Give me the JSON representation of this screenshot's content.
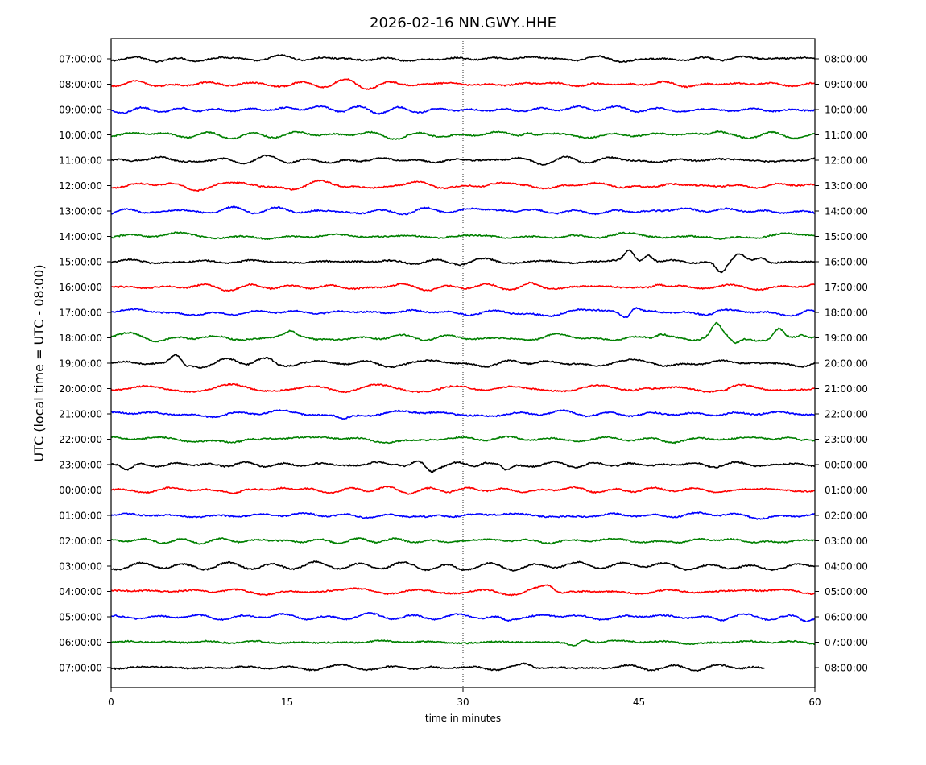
{
  "chart_data": {
    "type": "line",
    "title": "2026-02-16 NN.GWY..HHE",
    "xlabel": "time in minutes",
    "ylabel": "UTC (local time = UTC - 08:00)",
    "xlim": [
      0,
      60
    ],
    "x_ticks": [
      "0",
      "15",
      "30",
      "45",
      "60"
    ],
    "grid": "vertical dotted lines at 15, 30, 45",
    "trace_colors": [
      "#000000",
      "#ff0000",
      "#0000ff",
      "#008000"
    ],
    "final_row_end_minute": 55.7,
    "rows": [
      {
        "left": "07:00:00",
        "right": "08:00:00",
        "events": []
      },
      {
        "left": "08:00:00",
        "right": "09:00:00",
        "events": []
      },
      {
        "left": "09:00:00",
        "right": "10:00:00",
        "events": []
      },
      {
        "left": "10:00:00",
        "right": "11:00:00",
        "events": [
          [
            35.5,
            1.2
          ],
          [
            51.7,
            0.8
          ]
        ]
      },
      {
        "left": "11:00:00",
        "right": "12:00:00",
        "events": [
          [
            2.3,
            0.7
          ],
          [
            19.1,
            -0.6
          ]
        ]
      },
      {
        "left": "12:00:00",
        "right": "13:00:00",
        "events": [
          [
            30.7,
            0.7
          ]
        ]
      },
      {
        "left": "13:00:00",
        "right": "14:00:00",
        "events": [
          [
            3.4,
            0.6
          ]
        ]
      },
      {
        "left": "14:00:00",
        "right": "15:00:00",
        "events": [
          [
            51.0,
            0.6
          ]
        ]
      },
      {
        "left": "15:00:00",
        "right": "16:00:00",
        "events": [
          [
            44.2,
            4.0
          ],
          [
            45.8,
            3.2
          ],
          [
            52.0,
            -4.0
          ],
          [
            53.5,
            2.5
          ],
          [
            55.5,
            1.5
          ]
        ]
      },
      {
        "left": "16:00:00",
        "right": "17:00:00",
        "events": [
          [
            35.7,
            0.9
          ],
          [
            46.7,
            1.2
          ]
        ]
      },
      {
        "left": "17:00:00",
        "right": "18:00:00",
        "events": [
          [
            43.9,
            -1.8
          ],
          [
            44.7,
            2.0
          ],
          [
            51.8,
            0.8
          ],
          [
            59.5,
            1.0
          ]
        ]
      },
      {
        "left": "18:00:00",
        "right": "19:00:00",
        "events": [
          [
            15.3,
            1.3
          ],
          [
            46.9,
            1.4
          ],
          [
            51.6,
            4.5
          ],
          [
            53.2,
            -2.5
          ],
          [
            56.9,
            3.5
          ],
          [
            58.9,
            1.5
          ]
        ]
      },
      {
        "left": "19:00:00",
        "right": "20:00:00",
        "events": [
          [
            5.5,
            2.8
          ],
          [
            6.4,
            -1.0
          ],
          [
            12.5,
            1.2
          ],
          [
            13.4,
            1.6
          ]
        ]
      },
      {
        "left": "20:00:00",
        "right": "21:00:00",
        "events": [
          [
            45.5,
            0.7
          ],
          [
            52.3,
            -0.9
          ]
        ]
      },
      {
        "left": "21:00:00",
        "right": "22:00:00",
        "events": [
          [
            19.8,
            -1.1
          ]
        ]
      },
      {
        "left": "22:00:00",
        "right": "23:00:00",
        "events": [
          [
            12.5,
            -0.7
          ],
          [
            58.7,
            -1.2
          ]
        ]
      },
      {
        "left": "23:00:00",
        "right": "00:00:00",
        "events": [
          [
            1.4,
            -2.0
          ],
          [
            24.4,
            1.2
          ],
          [
            27.2,
            -2.5
          ],
          [
            31.8,
            1.0
          ],
          [
            33.7,
            -2.5
          ]
        ]
      },
      {
        "left": "00:00:00",
        "right": "01:00:00",
        "events": [
          [
            10.6,
            -0.8
          ],
          [
            14.7,
            0.8
          ]
        ]
      },
      {
        "left": "01:00:00",
        "right": "02:00:00",
        "events": [
          [
            27.0,
            -1.0
          ]
        ]
      },
      {
        "left": "02:00:00",
        "right": "03:00:00",
        "events": []
      },
      {
        "left": "03:00:00",
        "right": "04:00:00",
        "events": [
          [
            29.7,
            -0.7
          ]
        ]
      },
      {
        "left": "04:00:00",
        "right": "05:00:00",
        "events": [
          [
            37.3,
            1.0
          ],
          [
            38.2,
            -0.8
          ]
        ]
      },
      {
        "left": "05:00:00",
        "right": "06:00:00",
        "events": [
          [
            33.8,
            -1.2
          ],
          [
            52.1,
            -1.0
          ],
          [
            59.1,
            -1.1
          ]
        ]
      },
      {
        "left": "06:00:00",
        "right": "07:00:00",
        "events": [
          [
            40.4,
            1.0
          ],
          [
            39.4,
            -1.1
          ]
        ]
      },
      {
        "left": "07:00:00",
        "right": "08:00:00",
        "events": [
          [
            35.3,
            0.9
          ],
          [
            28.2,
            -0.6
          ]
        ]
      }
    ]
  }
}
